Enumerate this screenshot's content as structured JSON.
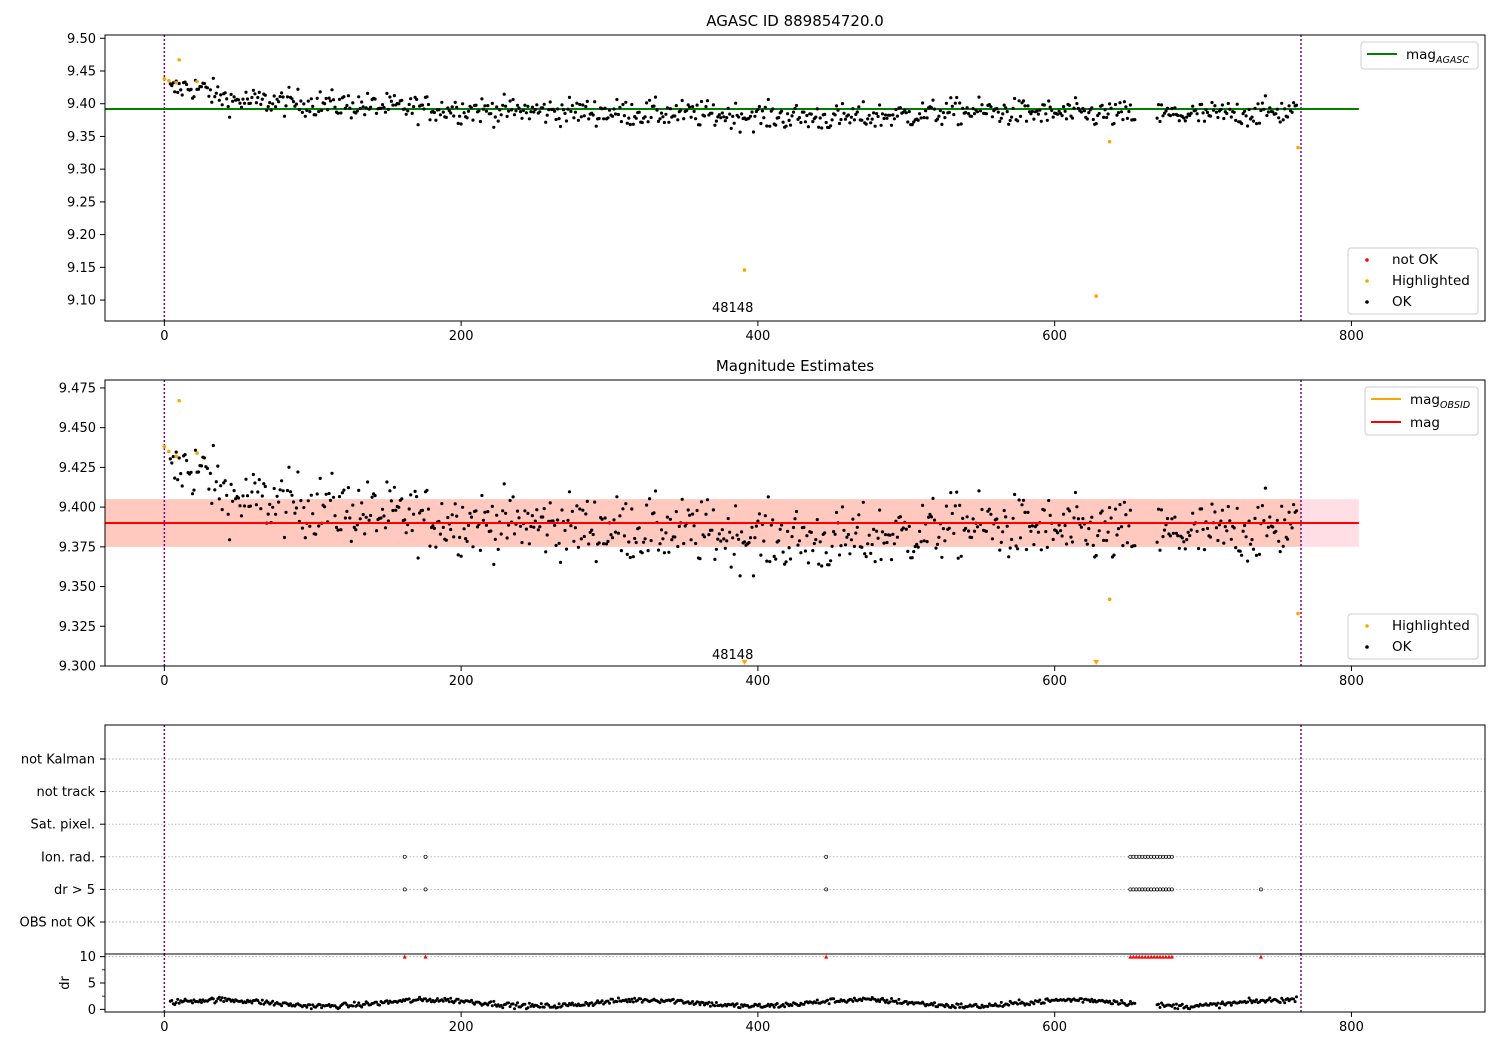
{
  "figure_title": "AGASC ID 889854720.0",
  "colors": {
    "ok": "#000000",
    "highlighted": "#ffa500",
    "not_ok": "#ff0000",
    "mag_agasc": "#008000",
    "mag_obsid": "#ffa500",
    "mag": "#ff0000",
    "band_outer": "#ffc0cb",
    "band_inner": "#ffa07a",
    "vline": "#800080",
    "grid": "#b0b0b0"
  },
  "chart_data": [
    {
      "id": "panel1",
      "type": "scatter",
      "title": "AGASC ID 889854720.0",
      "xlim": [
        -40,
        890
      ],
      "ylim": [
        9.068,
        9.505
      ],
      "xticks": [
        0,
        200,
        400,
        600,
        800
      ],
      "yticks": [
        9.1,
        9.15,
        9.2,
        9.25,
        9.3,
        9.35,
        9.4,
        9.45,
        9.5
      ],
      "ytick_labels": [
        "9.10",
        "9.15",
        "9.20",
        "9.25",
        "9.30",
        "9.35",
        "9.40",
        "9.45",
        "9.50"
      ],
      "legend_top": [
        {
          "name": "mag",
          "sub": "AGASC",
          "color": "#008000"
        }
      ],
      "legend_bottom": [
        {
          "name": "not OK",
          "color": "#ff0000"
        },
        {
          "name": "Highlighted",
          "color": "#ffa500"
        },
        {
          "name": "OK",
          "color": "#000000"
        }
      ],
      "hline": {
        "name": "mag_AGASC",
        "y": 9.392,
        "x0": -40,
        "x1": 805
      },
      "vlines": [
        0,
        766
      ],
      "obsid_label": {
        "text": "48148",
        "x": 383,
        "y": 9.082
      },
      "highlighted_points": [
        {
          "x": 0,
          "y": 9.438
        },
        {
          "x": 3,
          "y": 9.435
        },
        {
          "x": 8,
          "y": 9.432
        },
        {
          "x": 10,
          "y": 9.467
        },
        {
          "x": 22,
          "y": 9.434
        },
        {
          "x": 391,
          "y": 9.146
        },
        {
          "x": 628,
          "y": 9.106
        },
        {
          "x": 637,
          "y": 9.342
        },
        {
          "x": 764,
          "y": 9.333
        }
      ],
      "ok_trend": [
        [
          0,
          9.418
        ],
        [
          15,
          9.426
        ],
        [
          25,
          9.423
        ],
        [
          45,
          9.405
        ],
        [
          100,
          9.401
        ],
        [
          150,
          9.395
        ],
        [
          200,
          9.391
        ],
        [
          300,
          9.387
        ],
        [
          360,
          9.384
        ],
        [
          400,
          9.381
        ],
        [
          450,
          9.378
        ],
        [
          500,
          9.383
        ],
        [
          540,
          9.389
        ],
        [
          600,
          9.385
        ],
        [
          650,
          9.383
        ],
        [
          700,
          9.383
        ],
        [
          766,
          9.389
        ]
      ],
      "ok_noise": 0.01,
      "ok_gaps": [
        [
          655,
          668
        ]
      ]
    },
    {
      "id": "panel2",
      "type": "scatter",
      "title": "Magnitude Estimates",
      "xlim": [
        -40,
        890
      ],
      "ylim": [
        9.3,
        9.48
      ],
      "xticks": [
        0,
        200,
        400,
        600,
        800
      ],
      "yticks": [
        9.3,
        9.325,
        9.35,
        9.375,
        9.4,
        9.425,
        9.45,
        9.475
      ],
      "ytick_labels": [
        "9.300",
        "9.325",
        "9.350",
        "9.375",
        "9.400",
        "9.425",
        "9.450",
        "9.475"
      ],
      "legend_top": [
        {
          "name": "mag",
          "sub": "OBSID",
          "color": "#ffa500"
        },
        {
          "name": "mag",
          "sub": "",
          "color": "#ff0000"
        }
      ],
      "legend_bottom": [
        {
          "name": "Highlighted",
          "color": "#ffa500"
        },
        {
          "name": "OK",
          "color": "#000000"
        }
      ],
      "mag": {
        "y": 9.39,
        "x0": -40,
        "x1": 805
      },
      "band_outer": {
        "y0": 9.375,
        "y1": 9.405,
        "x0": -40,
        "x1": 805
      },
      "band_inner": {
        "y0": 9.375,
        "y1": 9.405,
        "x0": -40,
        "x1": 766
      },
      "vlines": [
        0,
        766
      ],
      "obsid_label": {
        "text": "48148",
        "x": 383,
        "y": 9.3045
      },
      "highlighted_points": [
        {
          "x": 0,
          "y": 9.438
        },
        {
          "x": 3,
          "y": 9.435
        },
        {
          "x": 8,
          "y": 9.432
        },
        {
          "x": 10,
          "y": 9.467
        },
        {
          "x": 22,
          "y": 9.434
        },
        {
          "x": 637,
          "y": 9.342
        },
        {
          "x": 764,
          "y": 9.333
        }
      ],
      "clipped_markers": [
        {
          "x": 391,
          "y": 9.302
        },
        {
          "x": 628,
          "y": 9.302
        }
      ]
    },
    {
      "id": "panel3",
      "type": "scatter",
      "title": "",
      "xlim": [
        -40,
        890
      ],
      "categories": [
        "not Kalman",
        "not track",
        "Sat. pixel.",
        "Ion. rad.",
        "dr > 5",
        "OBS not OK"
      ],
      "flags": {
        "Ion. rad.": [
          162,
          176,
          446,
          651,
          653,
          655,
          657,
          659,
          661,
          663,
          665,
          667,
          669,
          671,
          673,
          675,
          677,
          679
        ],
        "dr > 5": [
          162,
          176,
          446,
          651,
          653,
          655,
          657,
          659,
          661,
          663,
          665,
          667,
          669,
          671,
          673,
          675,
          677,
          679,
          739
        ]
      },
      "vlines": [
        0,
        766
      ]
    },
    {
      "id": "panel4",
      "type": "scatter",
      "title": "",
      "ylabel": "dr",
      "xlim": [
        -40,
        890
      ],
      "ylim": [
        -0.5,
        10.5
      ],
      "xticks": [
        0,
        200,
        400,
        600,
        800
      ],
      "yticks": [
        0,
        5,
        10
      ],
      "ytick_labels": [
        "0",
        "5",
        "10"
      ],
      "clipped_markers_x": [
        162,
        176,
        446,
        651,
        653,
        655,
        657,
        659,
        661,
        663,
        665,
        667,
        669,
        671,
        673,
        675,
        677,
        679,
        739
      ],
      "clipped_y": 10,
      "dr_mean": 1.2,
      "vlines": [
        0,
        766
      ]
    }
  ]
}
